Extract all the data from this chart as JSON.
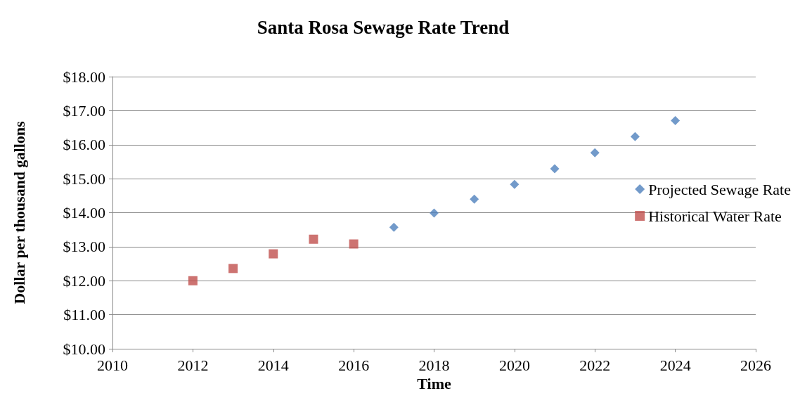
{
  "chart_data": {
    "type": "scatter",
    "title": "Santa Rosa Sewage Rate Trend",
    "xlabel": "Time",
    "ylabel": "Dollar per thousand gallons",
    "series": [
      {
        "name": "Projected Sewage Rate",
        "color": "#4f81bd",
        "marker": "diamond",
        "x": [
          2017,
          2018,
          2019,
          2020,
          2021,
          2022,
          2023,
          2024
        ],
        "values": [
          13.57,
          13.99,
          14.4,
          14.83,
          15.29,
          15.76,
          16.24,
          16.71
        ]
      },
      {
        "name": "Historical Water Rate",
        "color": "#c0504d",
        "marker": "square",
        "x": [
          2012,
          2013,
          2014,
          2015,
          2016
        ],
        "values": [
          12.0,
          12.36,
          12.79,
          13.22,
          13.08
        ]
      }
    ],
    "xlim": [
      2010,
      2026
    ],
    "xticks": [
      2010,
      2012,
      2014,
      2016,
      2018,
      2020,
      2022,
      2024,
      2026
    ],
    "ylim": [
      10,
      18
    ],
    "yticks": [
      {
        "value": 10,
        "label": "$10.00"
      },
      {
        "value": 11,
        "label": "$11.00"
      },
      {
        "value": 12,
        "label": "$12.00"
      },
      {
        "value": 13,
        "label": "$13.00"
      },
      {
        "value": 14,
        "label": "$14.00"
      },
      {
        "value": 15,
        "label": "$15.00"
      },
      {
        "value": 16,
        "label": "$16.00"
      },
      {
        "value": 17,
        "label": "$17.00"
      },
      {
        "value": 18,
        "label": "$18.00"
      }
    ],
    "grid": "y",
    "legend": "right"
  }
}
